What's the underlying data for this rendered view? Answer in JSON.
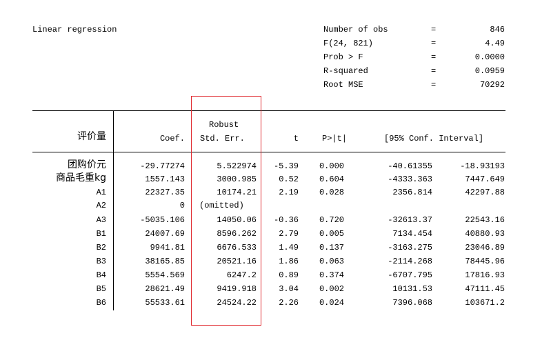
{
  "title": "Linear regression",
  "summary": [
    {
      "label": "Number of obs",
      "eq": "=",
      "value": "846"
    },
    {
      "label": "F(24, 821)",
      "eq": "=",
      "value": "4.49"
    },
    {
      "label": "Prob > F",
      "eq": "=",
      "value": "0.0000"
    },
    {
      "label": "R-squared",
      "eq": "=",
      "value": "0.0959"
    },
    {
      "label": "Root MSE",
      "eq": "=",
      "value": "70292"
    }
  ],
  "header": {
    "depvar": "评价量",
    "coef": "Coef.",
    "robust": "Robust",
    "stderr": "Std. Err.",
    "t": "t",
    "p": "P>|t|",
    "ci": "[95% Conf. Interval]"
  },
  "rows": [
    {
      "name": "团购价元",
      "coef": "-29.77274",
      "se": "5.522974",
      "t": "-5.39",
      "p": "0.000",
      "lo": "-40.61355",
      "hi": "-18.93193"
    },
    {
      "name": "商品毛重kg",
      "coef": "1557.143",
      "se": "3000.985",
      "t": "0.52",
      "p": "0.604",
      "lo": "-4333.363",
      "hi": "7447.649"
    },
    {
      "name": "A1",
      "coef": "22327.35",
      "se": "10174.21",
      "t": "2.19",
      "p": "0.028",
      "lo": "2356.814",
      "hi": "42297.88"
    },
    {
      "name": "A2",
      "coef": "0",
      "se": "(omitted)",
      "t": "",
      "p": "",
      "lo": "",
      "hi": ""
    },
    {
      "name": "A3",
      "coef": "-5035.106",
      "se": "14050.06",
      "t": "-0.36",
      "p": "0.720",
      "lo": "-32613.37",
      "hi": "22543.16"
    },
    {
      "name": "B1",
      "coef": "24007.69",
      "se": "8596.262",
      "t": "2.79",
      "p": "0.005",
      "lo": "7134.454",
      "hi": "40880.93"
    },
    {
      "name": "B2",
      "coef": "9941.81",
      "se": "6676.533",
      "t": "1.49",
      "p": "0.137",
      "lo": "-3163.275",
      "hi": "23046.89"
    },
    {
      "name": "B3",
      "coef": "38165.85",
      "se": "20521.16",
      "t": "1.86",
      "p": "0.063",
      "lo": "-2114.268",
      "hi": "78445.96"
    },
    {
      "name": "B4",
      "coef": "5554.569",
      "se": "6247.2",
      "t": "0.89",
      "p": "0.374",
      "lo": "-6707.795",
      "hi": "17816.93"
    },
    {
      "name": "B5",
      "coef": "28621.49",
      "se": "9419.918",
      "t": "3.04",
      "p": "0.002",
      "lo": "10131.53",
      "hi": "47111.45"
    },
    {
      "name": "B6",
      "coef": "55533.61",
      "se": "24524.22",
      "t": "2.26",
      "p": "0.024",
      "lo": "7396.068",
      "hi": "103671.2"
    }
  ],
  "colors": {
    "highlight_box": "#e0282e",
    "text": "#000000",
    "background": "#ffffff"
  }
}
